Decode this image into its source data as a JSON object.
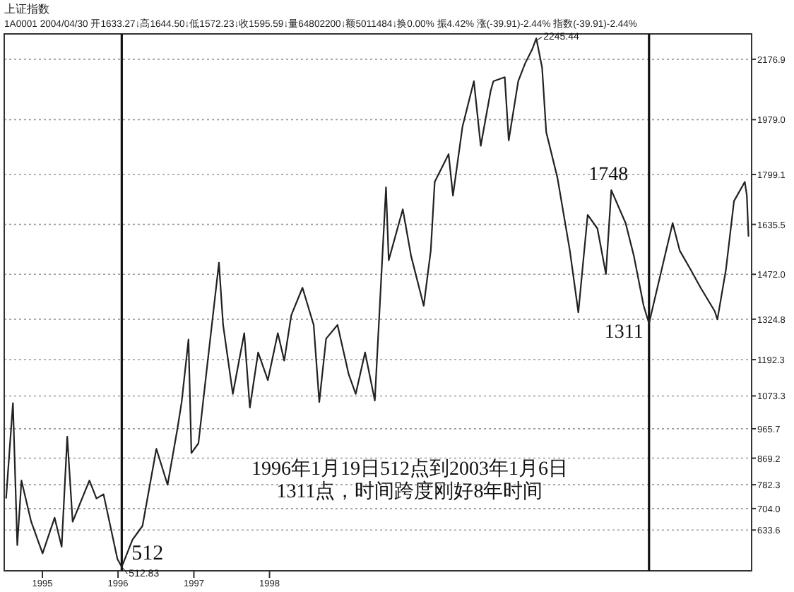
{
  "chart_data": {
    "type": "line",
    "title": "上证指数",
    "subtitle": "1A0001 2004/04/30 开1633.27↓高1644.50↓低1572.23↓收1595.59↓量64802200↓额5011484↓换0.00% 振4.42% 涨(-39.91)-2.44% 指数(-39.91)-2.44%",
    "x": [
      "1994-07-10",
      "1994-08-12",
      "1994-09-02",
      "1994-09-22",
      "1994-11-08",
      "1995-01-02",
      "1995-03-01",
      "1995-04-04",
      "1995-05-01",
      "1995-05-27",
      "1995-08-16",
      "1995-09-19",
      "1995-10-23",
      "1995-12-29",
      "1996-01-19",
      "1996-03-11",
      "1996-04-28",
      "1996-07-04",
      "1996-08-27",
      "1996-10-13",
      "1996-11-03",
      "1996-12-06",
      "1996-12-20",
      "1997-01-23",
      "1997-03-09",
      "1997-05-02",
      "1997-05-22",
      "1997-07-08",
      "1997-09-01",
      "1997-09-28",
      "1997-11-07",
      "1997-12-24",
      "1998-02-10",
      "1998-03-13",
      "1998-04-16",
      "1998-06-09",
      "1998-08-02",
      "1998-08-29",
      "1998-10-01",
      "1998-11-25",
      "1999-01-18",
      "1999-02-21",
      "1999-04-07",
      "1999-05-24",
      "1999-07-17",
      "1999-07-30",
      "1999-10-06",
      "1999-11-15",
      "2000-01-15",
      "2000-02-18",
      "2000-03-08",
      "2000-05-14",
      "2000-06-04",
      "2000-07-20",
      "2000-09-13",
      "2000-10-16",
      "2000-12-03",
      "2000-12-16",
      "2001-02-09",
      "2001-02-28",
      "2001-04-15",
      "2001-05-18",
      "2001-06-21",
      "2001-07-11",
      "2001-08-08",
      "2001-08-28",
      "2001-10-21",
      "2001-12-20",
      "2002-01-30",
      "2002-03-16",
      "2002-05-02",
      "2002-06-12",
      "2002-07-08",
      "2002-09-15",
      "2002-10-25",
      "2002-12-11",
      "2003-01-06",
      "2003-03-14",
      "2003-04-30",
      "2003-06-03",
      "2003-07-26",
      "2003-09-12",
      "2003-11-19",
      "2003-12-02",
      "2004-01-12",
      "2004-02-20",
      "2004-04-12",
      "2004-04-22",
      "2004-04-30"
    ],
    "series": [
      {
        "color": "#222222",
        "values": [
          737,
          1050,
          584,
          796,
          661,
          557,
          674,
          579,
          940,
          661,
          796,
          737,
          751,
          539,
          512.83,
          602,
          647,
          900,
          782,
          963,
          1053,
          1258,
          886,
          918,
          1189,
          1510,
          1306,
          1080,
          1279,
          1035,
          1216,
          1125,
          1279,
          1189,
          1338,
          1428,
          1306,
          1053,
          1261,
          1306,
          1144,
          1080,
          1216,
          1058,
          1757,
          1518,
          1685,
          1532,
          1369,
          1550,
          1775,
          1866,
          1730,
          1956,
          2105,
          1893,
          2073,
          2105,
          2118,
          1911,
          2105,
          2163,
          2209,
          2245.44,
          2150,
          1938,
          1789,
          1550,
          1347,
          1667,
          1622,
          1473,
          1748,
          1640,
          1532,
          1369,
          1311,
          1505,
          1640,
          1550,
          1487,
          1428,
          1351,
          1324,
          1487,
          1712,
          1775,
          1730,
          1595.59
        ]
      }
    ],
    "xlim": [
      "1994-07-01",
      "2004-05-15"
    ],
    "ylim": [
      500,
      2260
    ],
    "yticks": [
      633.6,
      {
        "value": 704.0,
        "label": "704.0"
      },
      782.3,
      869.2,
      965.7,
      1073.3,
      1192.3,
      1324.8,
      {
        "value": 1472.0,
        "label": "1472.0"
      },
      1635.5,
      1799.1,
      {
        "value": 1979.0,
        "label": "1979.0"
      },
      2176.9
    ],
    "xticks": [
      {
        "value": "1995-01-01",
        "label": "1995"
      },
      {
        "value": "1996-01-01",
        "label": "1996"
      },
      {
        "value": "1997-01-01",
        "label": "1997"
      },
      {
        "value": "1998-01-01",
        "label": "1998"
      }
    ],
    "grid": "y",
    "marker": "none",
    "line_style": "solid",
    "ref_lines": [
      {
        "axis": "x",
        "value": "1996-01-19",
        "color": "#111111"
      },
      {
        "axis": "x",
        "value": "2003-01-06",
        "color": "#111111"
      }
    ],
    "annotations": [
      {
        "text": "512",
        "x": "1996-01-19",
        "y": 512.83
      },
      {
        "text": "512.83",
        "x": "1996-01-19",
        "y": 512.83
      },
      {
        "text": "2245.44",
        "x": "2001-07-11",
        "y": 2245.44
      },
      {
        "text": "1748",
        "x": "2002-07-08",
        "y": 1748
      },
      {
        "text": "1311",
        "x": "2003-01-06",
        "y": 1311
      },
      "1996年1月19日512点到2003年1月6日",
      "1311点，时间跨度刚好8年时间"
    ]
  }
}
